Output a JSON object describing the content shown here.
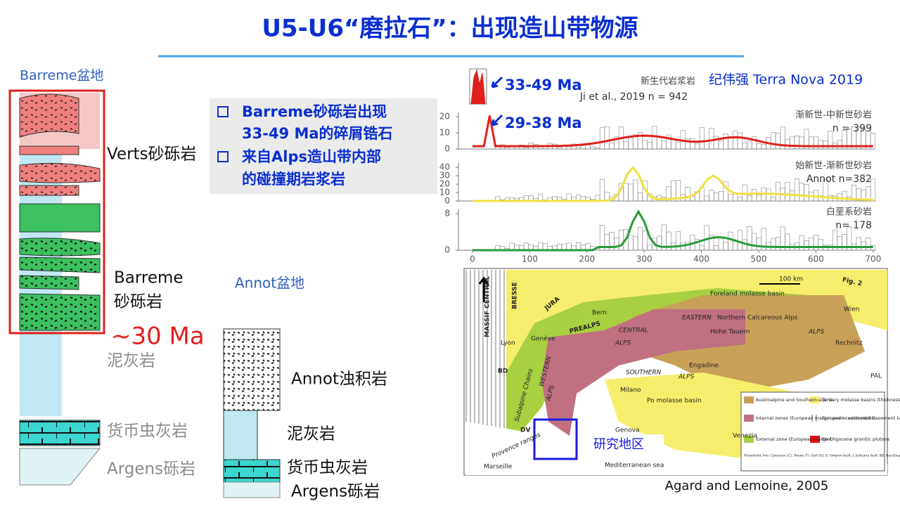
{
  "title": "U5-U6“磨拉石”：出现造山带物源",
  "barreme": {
    "basin": "Barreme盆地",
    "verts": "Verts砂砾岩",
    "barreme": [
      "Barreme",
      "砂砾岩"
    ],
    "age": "~30 Ma",
    "marl": "泥灰岩",
    "nummulitic": "货币虫灰岩",
    "argens": "Argens砾岩"
  },
  "bullets": [
    [
      "Barreme砂砾岩出现",
      "33-49 Ma的碎屑锆石"
    ],
    [
      "来自Alps造山带内部",
      "的碰撞期岩浆岩"
    ]
  ],
  "annot": {
    "basin": "Annot盆地",
    "turbidite": "Annot浊积岩",
    "marl": "泥灰岩",
    "nummulitic": "货币虫灰岩",
    "argens": "Argens砾岩"
  },
  "zircon": {
    "citation": "纪伟强 Terra Nova 2019",
    "panels": [
      {
        "annotation": "33-49 Ma",
        "label": "新生代岩浆岩",
        "n": "Ji et al., 2019 n = 942"
      },
      {
        "annotation": "29-38 Ma",
        "label": "渐新世-中新世砂岩",
        "n": "n = 399",
        "yticks": [
          20,
          10,
          0
        ]
      },
      {
        "label": "始新世-渐新世砂岩",
        "n": "Annot n=382",
        "yticks": [
          40,
          30,
          20,
          10,
          0
        ]
      },
      {
        "label": "白垩系砂岩",
        "n": "n= 178",
        "yticks": [
          8,
          0
        ]
      }
    ],
    "xticks": [
      0,
      100,
      200,
      300,
      400,
      500,
      600,
      700
    ]
  },
  "map": {
    "labels": [
      "Fig. 2",
      "Foreland molasse basin",
      "100 km",
      "Northern Calcareous Alps",
      "EASTERN",
      "ALPS",
      "Hohe Tauern",
      "CENTRAL",
      "ALPS",
      "Engadine",
      "SOUTHERN",
      "ALPS",
      "WESTERN",
      "ALPS",
      "Po molasse basin",
      "Mediterranean sea",
      "Subalpine Chains",
      "Provence ranges",
      "MASSIF CENTRAL",
      "BRESSE",
      "JURA",
      "PREALPS",
      "Bern",
      "Lyon",
      "Genève",
      "Milano",
      "Venezia",
      "Genova",
      "Marseille",
      "Wien",
      "Rechnitz",
      "PAL",
      "BD",
      "DV",
      "N"
    ],
    "legend": [
      "Austroalpine and Southern-alpine",
      "Tertiary molasse basins (thickness > km)",
      "Internal zones (European margin and oceanic rocks)",
      "European continental basement (extra Alpine)",
      "External zone (European margin)",
      "Eo-Oligocene granitic plutons"
    ],
    "note": "Periadriatic line: Canavese (C), Tonale (T), Gail (G); S: Simplon fault; J: Judicaria fault; BD: Bas-Dauphiné basin; DV: Digne-Valensole basin",
    "study_area": "研究地区"
  },
  "source": "Agard and Lemoine, 2005"
}
